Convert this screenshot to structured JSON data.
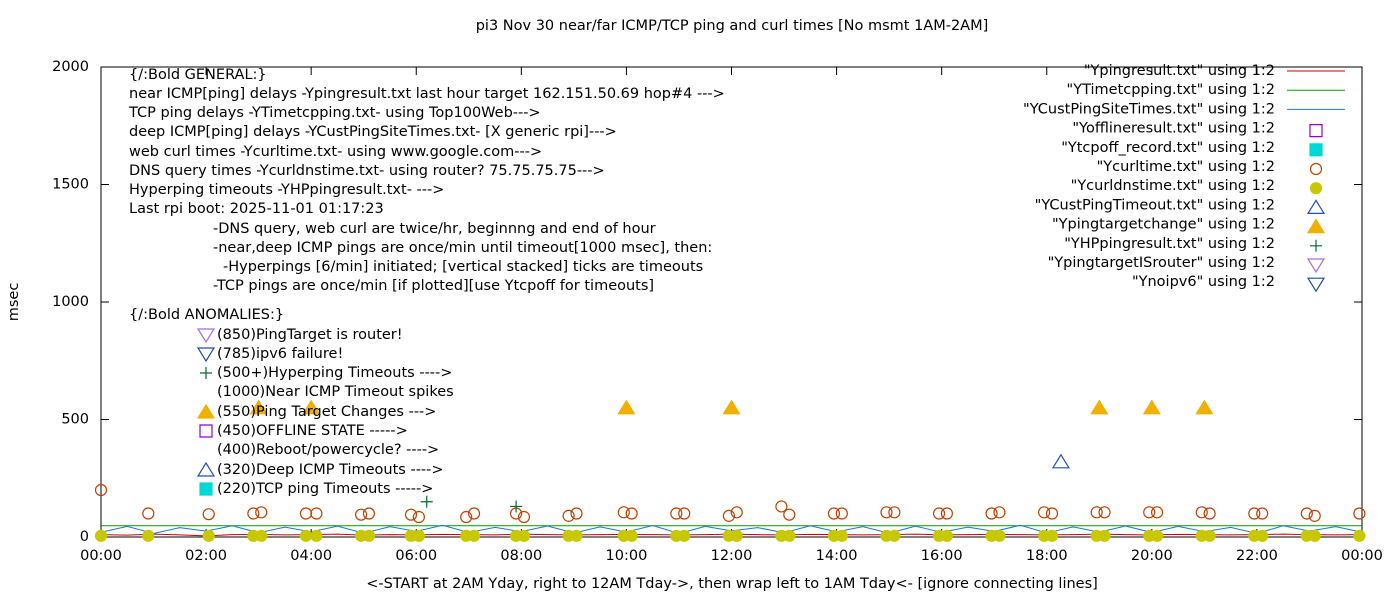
{
  "chart_data": {
    "type": "scatter",
    "title": "pi3 Nov 30  near/far ICMP/TCP ping and curl times [No msmt 1AM-2AM]",
    "xlabel": "<-START at 2AM Yday, right to 12AM Tday->, then wrap left to 1AM Tday<- [ignore connecting lines]",
    "ylabel": "msec",
    "xlim": [
      0,
      24
    ],
    "ylim": [
      0,
      2000
    ],
    "xticks": [
      {
        "value": 0,
        "label": "00:00"
      },
      {
        "value": 2,
        "label": "02:00"
      },
      {
        "value": 4,
        "label": "04:00"
      },
      {
        "value": 6,
        "label": "06:00"
      },
      {
        "value": 8,
        "label": "08:00"
      },
      {
        "value": 10,
        "label": "10:00"
      },
      {
        "value": 12,
        "label": "12:00"
      },
      {
        "value": 14,
        "label": "14:00"
      },
      {
        "value": 16,
        "label": "16:00"
      },
      {
        "value": 18,
        "label": "18:00"
      },
      {
        "value": 20,
        "label": "20:00"
      },
      {
        "value": 22,
        "label": "22:00"
      },
      {
        "value": 24,
        "label": "00:00"
      }
    ],
    "yticks": [
      0,
      500,
      1000,
      1500,
      2000
    ],
    "legend": "top right",
    "annotations": [
      "{/:Bold GENERAL:}",
      "near ICMP[ping] delays -Ypingresult.txt last hour target 162.151.50.69 hop#4 --->",
      "TCP ping delays -YTimetcpping.txt- using Top100Web--->",
      "deep ICMP[ping] delays -YCustPingSiteTimes.txt- [X generic rpi]--->",
      "web curl times -Ycurltime.txt- using www.google.com--->",
      "DNS query times -Ycurldnstime.txt- using router? 75.75.75.75--->",
      "Hyperping timeouts -YHPpingresult.txt- --->",
      "Last rpi boot: 2025-11-01 01:17:23",
      "-DNS query, web curl are twice/hr, beginnng and end of hour",
      "-near,deep ICMP pings are once/min until timeout[1000 msec], then:",
      "-Hyperpings [6/min] initiated; [vertical stacked] ticks are timeouts",
      "-TCP pings are once/min [if plotted][use Ytcpoff for timeouts]",
      "{/:Bold ANOMALIES:}",
      "(850)PingTarget is router!",
      "(785)ipv6 failure!",
      "(500+)Hyperping Timeouts ---->",
      "(1000)Near ICMP Timeout spikes",
      "(550)Ping Target Changes --->",
      "(450)OFFLINE STATE ----->",
      "(400)Reboot/powercycle? ---->",
      "(320)Deep ICMP Timeouts ---->",
      "(220)TCP ping Timeouts ----->"
    ],
    "series": [
      {
        "name": "\"Ypingresult.txt\" using 1:2",
        "color": "#d00000",
        "marker": "line",
        "x": [
          0,
          0.5,
          1,
          1.5,
          2,
          2.5,
          3,
          3.5,
          4,
          4.5,
          5,
          5.5,
          6,
          6.5,
          7,
          7.5,
          8,
          8.5,
          9,
          9.5,
          10,
          10.5,
          11,
          11.5,
          12,
          12.5,
          13,
          13.5,
          14,
          14.5,
          15,
          15.5,
          16,
          16.5,
          17,
          17.5,
          18,
          18.5,
          19,
          19.5,
          20,
          20.5,
          21,
          21.5,
          22,
          22.5,
          23,
          23.5,
          24
        ],
        "values": [
          10,
          8,
          12,
          9,
          5,
          10,
          11,
          9,
          10,
          12,
          8,
          10,
          9,
          11,
          10,
          9,
          12,
          10,
          9,
          10,
          11,
          10,
          9,
          10,
          12,
          10,
          9,
          11,
          10,
          9,
          10,
          12,
          9,
          10,
          11,
          10,
          9,
          10,
          12,
          10,
          9,
          11,
          10,
          9,
          10,
          12,
          10,
          9,
          10
        ]
      },
      {
        "name": "\"YTimetcpping.txt\" using 1:2",
        "color": "#00a000",
        "marker": "line",
        "x": [
          0,
          0.5,
          1,
          1.5,
          2,
          2.5,
          3,
          3.5,
          4,
          4.5,
          5,
          5.5,
          6,
          6.5,
          7,
          7.5,
          8,
          8.5,
          9,
          9.5,
          10,
          10.5,
          11,
          11.5,
          12,
          12.5,
          13,
          13.5,
          14,
          14.5,
          15,
          15.5,
          16,
          16.5,
          17,
          17.5,
          18,
          18.5,
          19,
          19.5,
          20,
          20.5,
          21,
          21.5,
          22,
          22.5,
          23,
          23.5,
          24
        ],
        "values": [
          48,
          48,
          48,
          48,
          48,
          48,
          48,
          48,
          48,
          48,
          48,
          48,
          48,
          48,
          48,
          48,
          48,
          48,
          48,
          48,
          48,
          48,
          48,
          48,
          48,
          48,
          48,
          48,
          48,
          48,
          48,
          48,
          48,
          48,
          48,
          48,
          48,
          48,
          48,
          48,
          48,
          48,
          48,
          48,
          48,
          48,
          48,
          48,
          48
        ]
      },
      {
        "name": "\"YCustPingSiteTimes.txt\" using 1:2",
        "color": "#1c78c8",
        "marker": "line",
        "x": [
          0,
          0.5,
          1,
          1.5,
          2,
          2.5,
          3,
          3.5,
          4,
          4.5,
          5,
          5.5,
          6,
          6.5,
          7,
          7.5,
          8,
          8.5,
          9,
          9.5,
          10,
          10.5,
          11,
          11.5,
          12,
          12.5,
          13,
          13.5,
          14,
          14.5,
          15,
          15.5,
          16,
          16.5,
          17,
          17.5,
          18,
          18.5,
          19,
          19.5,
          20,
          20.5,
          21,
          21.5,
          22,
          22.5,
          23,
          23.5,
          24
        ],
        "values": [
          20,
          45,
          15,
          40,
          25,
          48,
          18,
          42,
          22,
          46,
          16,
          44,
          24,
          50,
          19,
          41,
          23,
          47,
          17,
          43,
          21,
          49,
          15,
          45,
          26,
          40,
          18,
          48,
          22,
          44,
          16,
          46,
          20,
          42,
          24,
          50,
          17,
          43,
          21,
          47,
          19,
          45,
          23,
          41,
          15,
          48,
          25,
          44,
          20
        ]
      },
      {
        "name": "\"Yofflineresult.txt\" using 1:2",
        "color": "#9400d3",
        "marker": "square",
        "x": [],
        "values": []
      },
      {
        "name": "\"Ytcpoff_record.txt\" using 1:2",
        "color": "#00d8d8",
        "marker": "square-filled",
        "x": [],
        "values": []
      },
      {
        "name": "\"Ycurltime.txt\" using 1:2",
        "color": "#c04000",
        "marker": "circle",
        "x": [
          0.0,
          0.9,
          2.05,
          2.9,
          3.05,
          3.9,
          4.1,
          4.95,
          5.1,
          5.9,
          6.05,
          6.95,
          7.1,
          7.9,
          8.05,
          8.9,
          9.05,
          9.95,
          10.1,
          10.95,
          11.1,
          11.95,
          12.1,
          12.95,
          13.1,
          13.95,
          14.1,
          14.95,
          15.1,
          15.95,
          16.1,
          16.95,
          17.1,
          17.95,
          18.1,
          18.95,
          19.1,
          19.95,
          20.1,
          20.95,
          21.1,
          21.95,
          22.1,
          22.95,
          23.1,
          23.95
        ],
        "values": [
          200,
          100,
          97,
          100,
          105,
          100,
          100,
          95,
          100,
          95,
          85,
          85,
          100,
          100,
          85,
          90,
          100,
          105,
          100,
          100,
          100,
          90,
          105,
          130,
          95,
          100,
          100,
          105,
          105,
          100,
          100,
          100,
          105,
          105,
          100,
          105,
          105,
          105,
          105,
          105,
          100,
          100,
          100,
          100,
          90,
          100
        ]
      },
      {
        "name": "\"Ycurldnstime.txt\" using 1:2",
        "color": "#c8c800",
        "marker": "circle-filled",
        "x": [
          0.0,
          0.9,
          2.05,
          2.9,
          3.05,
          3.9,
          4.1,
          4.95,
          5.1,
          5.9,
          6.05,
          6.95,
          7.1,
          7.9,
          8.05,
          8.9,
          9.05,
          9.95,
          10.1,
          10.95,
          11.1,
          11.95,
          12.1,
          12.95,
          13.1,
          13.95,
          14.1,
          14.95,
          15.1,
          15.95,
          16.1,
          16.95,
          17.1,
          17.95,
          18.1,
          18.95,
          19.1,
          19.95,
          20.1,
          20.95,
          21.1,
          21.95,
          22.1,
          22.95,
          23.1,
          23.95
        ],
        "values": [
          5,
          5,
          5,
          5,
          5,
          5,
          5,
          5,
          5,
          5,
          5,
          5,
          5,
          5,
          5,
          5,
          5,
          5,
          5,
          5,
          5,
          5,
          5,
          5,
          5,
          5,
          5,
          5,
          5,
          5,
          5,
          5,
          5,
          5,
          5,
          5,
          5,
          5,
          5,
          5,
          5,
          5,
          5,
          5,
          5,
          5
        ]
      },
      {
        "name": "\"YCustPingTimeout.txt\" using 1:2",
        "color": "#2050c0",
        "marker": "triangle",
        "x": [
          18.27
        ],
        "values": [
          320
        ]
      },
      {
        "name": "\"Ypingtargetchange\" using 1:2",
        "color": "#f0b000",
        "marker": "triangle-filled",
        "x": [
          3,
          4,
          10,
          12,
          19,
          20,
          21
        ],
        "values": [
          550,
          550,
          550,
          550,
          550,
          550,
          550
        ]
      },
      {
        "name": "\"YHPpingresult.txt\" using 1:2",
        "color": "#006a30",
        "marker": "plus",
        "x": [
          6.2,
          7.9
        ],
        "values": [
          150,
          130
        ]
      },
      {
        "name": "\"YpingtargetISrouter\" using 1:2",
        "color": "#a070e0",
        "marker": "triangle-down",
        "x": [],
        "values": []
      },
      {
        "name": "\"Ynoipv6\" using 1:2",
        "color": "#1f4fa0",
        "marker": "triangle-down",
        "x": [],
        "values": []
      }
    ]
  }
}
